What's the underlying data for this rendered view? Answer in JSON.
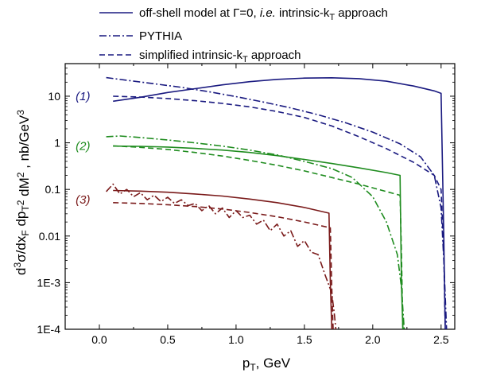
{
  "chart_data": {
    "type": "line",
    "title": "",
    "xlabel": "p_T, GeV",
    "ylabel": "d^3σ/dx_F dp_T^2 dM^2 , nb/GeV^3",
    "xlim": [
      -0.25,
      2.6
    ],
    "ylim": [
      0.0001,
      50
    ],
    "yscale": "log",
    "x_ticks": [
      "0.0",
      "0.5",
      "1.0",
      "1.5",
      "2.0",
      "2.5"
    ],
    "y_ticks": [
      "10",
      "1",
      "0.1",
      "0.01",
      "1E-3",
      "1E-4"
    ],
    "grid": false,
    "legend": {
      "placement": "top",
      "entries": [
        {
          "style": "solid",
          "label_pre": "off-shell model at Γ=0, ",
          "label_italic": "i.e.",
          "label_post": " intrinsic-k",
          "label_sub": "T",
          "label_end": " approach"
        },
        {
          "style": "dashdot",
          "label_pre": "PYTHIA",
          "label_italic": "",
          "label_post": "",
          "label_sub": "",
          "label_end": ""
        },
        {
          "style": "dash",
          "label_pre": "simplified intrinsic-k",
          "label_italic": "",
          "label_post": "",
          "label_sub": "T",
          "label_end": " approach"
        }
      ]
    },
    "curve_labels": [
      {
        "text": "(1)",
        "x": -0.12,
        "y": 10,
        "color": "#1a1a80"
      },
      {
        "text": "(2)",
        "x": -0.12,
        "y": 0.85,
        "color": "#1f8c1f"
      },
      {
        "text": "(3)",
        "x": -0.12,
        "y": 0.06,
        "color": "#7a1a1a"
      }
    ],
    "series": [
      {
        "group": 1,
        "style": "solid",
        "color": "#1a1a80",
        "x": [
          0.1,
          0.3,
          0.5,
          0.7,
          0.9,
          1.1,
          1.3,
          1.5,
          1.7,
          1.9,
          2.1,
          2.3,
          2.45,
          2.5,
          2.52,
          2.53
        ],
        "y": [
          7.8,
          9.5,
          12,
          14.5,
          17.5,
          20.5,
          23,
          24.5,
          24.8,
          23.8,
          21,
          16.5,
          13,
          11.5,
          0.01,
          0.0001
        ]
      },
      {
        "group": 1,
        "style": "dashdot",
        "color": "#1a1a80",
        "x": [
          0.05,
          0.2,
          0.4,
          0.6,
          0.8,
          1.0,
          1.2,
          1.4,
          1.6,
          1.8,
          2.0,
          2.2,
          2.35,
          2.45,
          2.5,
          2.52,
          2.54
        ],
        "y": [
          25,
          22,
          18.5,
          15.5,
          12.5,
          9.8,
          7.5,
          5.6,
          4,
          2.7,
          1.7,
          0.95,
          0.5,
          0.2,
          0.04,
          0.003,
          0.0001
        ]
      },
      {
        "group": 1,
        "style": "dash",
        "color": "#1a1a80",
        "x": [
          0.1,
          0.3,
          0.5,
          0.7,
          0.9,
          1.1,
          1.3,
          1.5,
          1.7,
          1.9,
          2.1,
          2.3,
          2.45,
          2.5,
          2.52,
          2.53
        ],
        "y": [
          10,
          9.6,
          8.9,
          8,
          7,
          5.9,
          4.7,
          3.5,
          2.3,
          1.35,
          0.75,
          0.38,
          0.2,
          0.1,
          0.004,
          0.0001
        ]
      },
      {
        "group": 2,
        "style": "solid",
        "color": "#1f8c1f",
        "x": [
          0.1,
          0.3,
          0.5,
          0.7,
          0.9,
          1.1,
          1.3,
          1.5,
          1.7,
          1.9,
          2.1,
          2.2,
          2.21,
          2.22
        ],
        "y": [
          0.85,
          0.84,
          0.81,
          0.76,
          0.7,
          0.62,
          0.53,
          0.44,
          0.36,
          0.29,
          0.23,
          0.2,
          0.001,
          0.0001
        ]
      },
      {
        "group": 2,
        "style": "dashdot",
        "color": "#1f8c1f",
        "x": [
          0.05,
          0.15,
          0.3,
          0.5,
          0.7,
          0.9,
          1.1,
          1.3,
          1.5,
          1.7,
          1.85,
          2.0,
          2.1,
          2.18,
          2.21,
          2.23
        ],
        "y": [
          1.35,
          1.4,
          1.3,
          1.15,
          1.0,
          0.85,
          0.7,
          0.55,
          0.4,
          0.28,
          0.18,
          0.07,
          0.02,
          0.004,
          0.0008,
          0.0001
        ]
      },
      {
        "group": 2,
        "style": "dash",
        "color": "#1f8c1f",
        "x": [
          0.1,
          0.3,
          0.5,
          0.7,
          0.9,
          1.1,
          1.3,
          1.5,
          1.7,
          1.9,
          2.1,
          2.2,
          2.21,
          2.22
        ],
        "y": [
          0.86,
          0.8,
          0.72,
          0.62,
          0.52,
          0.42,
          0.33,
          0.25,
          0.18,
          0.13,
          0.09,
          0.075,
          0.005,
          0.0001
        ]
      },
      {
        "group": 3,
        "style": "solid",
        "color": "#7a1a1a",
        "x": [
          0.1,
          0.3,
          0.5,
          0.7,
          0.9,
          1.1,
          1.3,
          1.5,
          1.68,
          1.69,
          1.7
        ],
        "y": [
          0.095,
          0.092,
          0.087,
          0.08,
          0.072,
          0.062,
          0.052,
          0.041,
          0.031,
          0.001,
          0.0001
        ]
      },
      {
        "group": 3,
        "style": "dashdot",
        "color": "#7a1a1a",
        "x": [
          0.05,
          0.1,
          0.15,
          0.2,
          0.25,
          0.3,
          0.35,
          0.4,
          0.45,
          0.5,
          0.55,
          0.6,
          0.65,
          0.7,
          0.75,
          0.8,
          0.85,
          0.9,
          0.95,
          1.0,
          1.05,
          1.1,
          1.15,
          1.2,
          1.25,
          1.3,
          1.35,
          1.4,
          1.45,
          1.5,
          1.55,
          1.6,
          1.65,
          1.7,
          1.72,
          1.73
        ],
        "y": [
          0.09,
          0.13,
          0.08,
          0.1,
          0.07,
          0.085,
          0.06,
          0.075,
          0.055,
          0.068,
          0.05,
          0.06,
          0.045,
          0.05,
          0.035,
          0.045,
          0.03,
          0.04,
          0.025,
          0.035,
          0.025,
          0.028,
          0.018,
          0.022,
          0.013,
          0.018,
          0.01,
          0.013,
          0.006,
          0.008,
          0.0045,
          0.004,
          0.0015,
          0.0006,
          0.0002,
          0.0001
        ]
      },
      {
        "group": 3,
        "style": "dash",
        "color": "#7a1a1a",
        "x": [
          0.1,
          0.3,
          0.5,
          0.7,
          0.9,
          1.1,
          1.3,
          1.5,
          1.69,
          1.7,
          1.71
        ],
        "y": [
          0.052,
          0.05,
          0.047,
          0.043,
          0.038,
          0.032,
          0.026,
          0.02,
          0.015,
          0.0008,
          0.0001
        ]
      }
    ]
  }
}
